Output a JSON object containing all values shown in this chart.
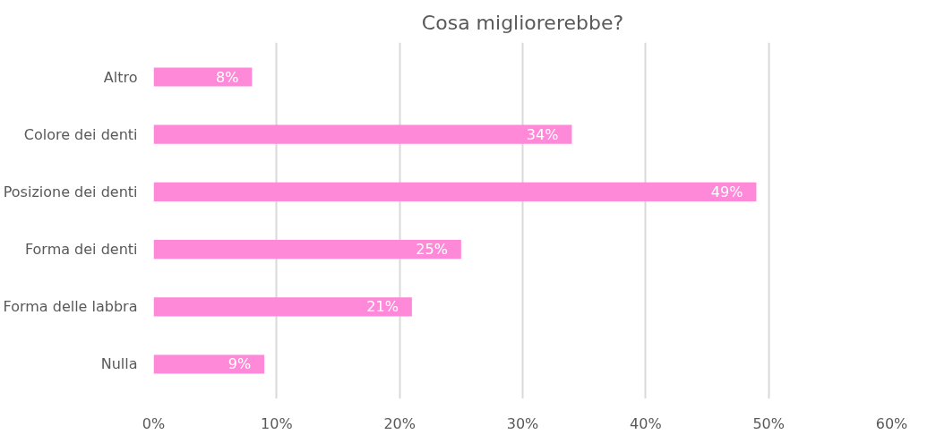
{
  "chart_data": {
    "type": "bar",
    "orientation": "horizontal",
    "title": "Cosa migliorerebbe?",
    "categories": [
      "Altro",
      "Colore dei denti",
      "Posizione dei denti",
      "Forma dei denti",
      "Forma delle labbra",
      "Nulla"
    ],
    "values": [
      8,
      34,
      49,
      25,
      21,
      9
    ],
    "value_labels": [
      "8%",
      "34%",
      "49%",
      "25%",
      "21%",
      "9%"
    ],
    "color": "#ff89d9",
    "xlim": [
      0,
      60
    ],
    "xticks": [
      {
        "value": 0,
        "label": "0%"
      },
      {
        "value": 10,
        "label": "10%"
      },
      {
        "value": 20,
        "label": "20%"
      },
      {
        "value": 30,
        "label": "30%"
      },
      {
        "value": 40,
        "label": "40%"
      },
      {
        "value": 50,
        "label": "50%"
      },
      {
        "value": 60,
        "label": "60%"
      }
    ],
    "grid": "x"
  }
}
